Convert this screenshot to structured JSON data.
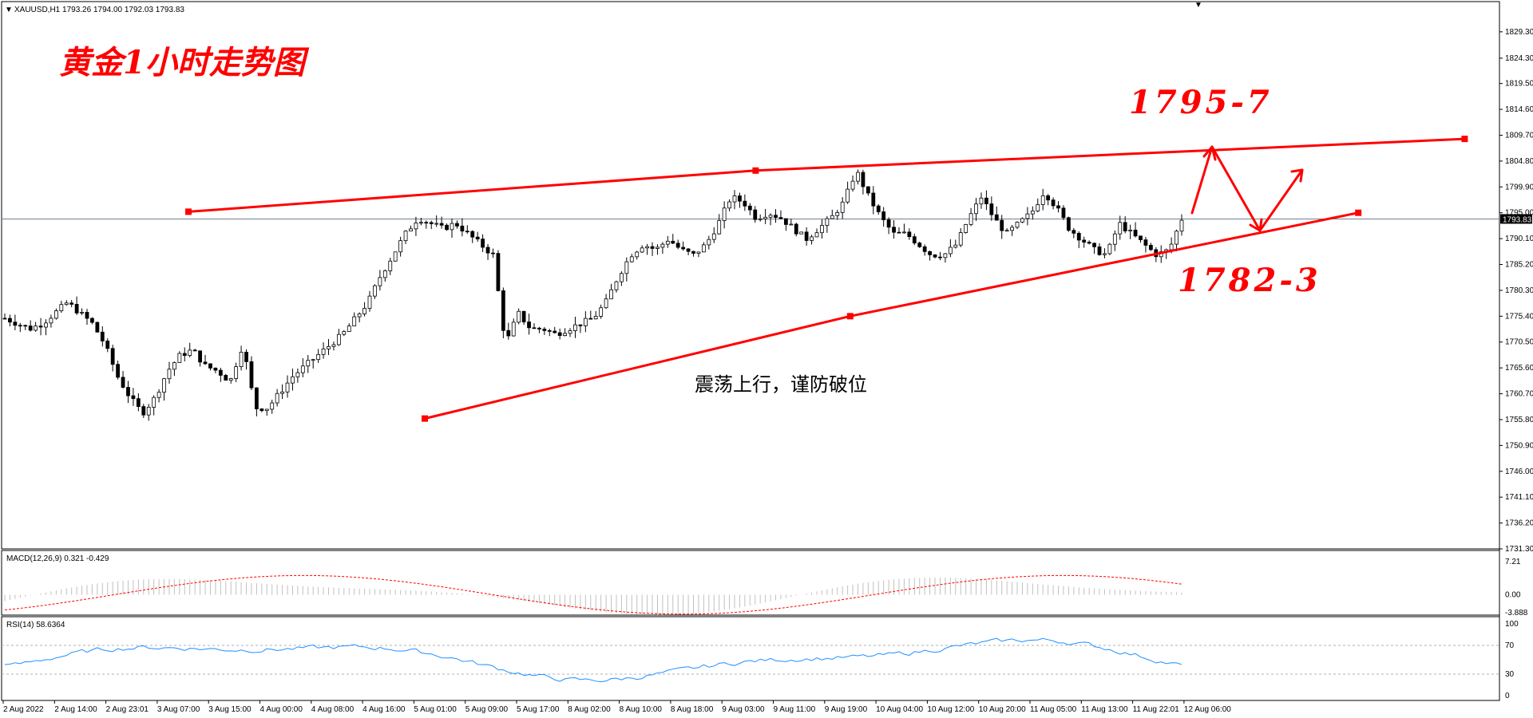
{
  "chart_header": {
    "symbol_line": "XAUUSD,H1  1793.26 1794.00 1792.03 1793.83"
  },
  "annotations": {
    "title": "黄金1小时走势图",
    "resistance_label": "1795-7",
    "support_label": "1782-3",
    "comment": "震荡上行，谨防破位"
  },
  "colors": {
    "trendline": "#ff0000",
    "bull_candle": "#ffffff",
    "bear_candle": "#000000",
    "macd_hist": "#c0c0c0",
    "macd_signal": "#ff0000",
    "rsi_line": "#1e90ff",
    "price_line": "#708090"
  },
  "chart_data": [
    {
      "type": "candlestick",
      "symbol": "XAUUSD",
      "timeframe": "H1",
      "last_price": "1793.83",
      "ylim": [
        1731.3,
        1832.0
      ],
      "y_ticks": [
        "1829.30",
        "1824.30",
        "1819.50",
        "1814.60",
        "1809.70",
        "1804.80",
        "1799.90",
        "1795.00",
        "1790.10",
        "1785.20",
        "1780.30",
        "1775.40",
        "1770.50",
        "1765.60",
        "1760.70",
        "1755.80",
        "1750.90",
        "1746.00",
        "1741.10",
        "1736.20",
        "1731.30"
      ],
      "x_ticks": [
        "2 Aug 2022",
        "2 Aug 14:00",
        "2 Aug 23:01",
        "3 Aug 07:00",
        "3 Aug 15:00",
        "4 Aug 00:00",
        "4 Aug 08:00",
        "4 Aug 16:00",
        "5 Aug 01:00",
        "5 Aug 09:00",
        "5 Aug 17:00",
        "8 Aug 02:00",
        "8 Aug 10:00",
        "8 Aug 18:00",
        "9 Aug 03:00",
        "9 Aug 11:00",
        "9 Aug 19:00",
        "10 Aug 04:00",
        "10 Aug 12:00",
        "10 Aug 20:00",
        "11 Aug 05:00",
        "11 Aug 13:00",
        "11 Aug 22:01",
        "12 Aug 06:00"
      ],
      "close_path": [
        1775,
        1774,
        1773,
        1774,
        1776,
        1778,
        1776,
        1774,
        1770,
        1764,
        1760,
        1757,
        1760,
        1765,
        1768,
        1769,
        1766,
        1765,
        1763,
        1770,
        1758,
        1758,
        1761,
        1764,
        1766,
        1768,
        1770,
        1772,
        1775,
        1778,
        1783,
        1787,
        1791,
        1794,
        1793,
        1792,
        1793,
        1791,
        1789,
        1787,
        1770,
        1776,
        1773,
        1773,
        1772,
        1773,
        1774,
        1775,
        1778,
        1783,
        1787,
        1789,
        1788,
        1790,
        1788,
        1787,
        1789,
        1793,
        1798,
        1797,
        1794,
        1795,
        1794,
        1792,
        1790,
        1792,
        1794,
        1797,
        1803,
        1798,
        1794,
        1791,
        1791,
        1789,
        1787,
        1787,
        1789,
        1794,
        1798,
        1794,
        1791,
        1793,
        1795,
        1799,
        1796,
        1792,
        1790,
        1788,
        1787,
        1793,
        1791,
        1789,
        1787,
        1788,
        1793.83
      ],
      "trendlines": [
        {
          "name": "resistance",
          "points": [
            [
              0,
              1795.2
            ],
            [
              48,
              1803.0
            ],
            [
              108,
              1809.0
            ]
          ]
        },
        {
          "name": "support",
          "points": [
            [
              20,
              1756.0
            ],
            [
              56,
              1775.4
            ],
            [
              99,
              1795.0
            ]
          ]
        }
      ]
    },
    {
      "type": "line",
      "name": "MACD(12,26,9) 0.321 -0.429",
      "y_ticks": [
        "7.21",
        "0.00",
        "-3.888"
      ],
      "ylim": [
        -3.888,
        7.21
      ]
    },
    {
      "type": "line",
      "name": "RSI(14) 58.6364",
      "y_ticks": [
        "100",
        "70",
        "30",
        "0"
      ],
      "levels": [
        70,
        30
      ],
      "ylim": [
        0,
        100
      ]
    }
  ]
}
